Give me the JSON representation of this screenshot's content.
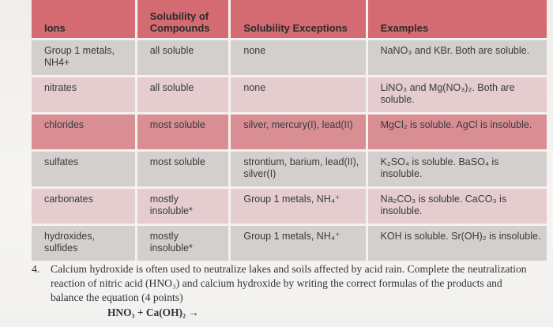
{
  "table": {
    "headers": [
      "Ions",
      "Solubility of Compounds",
      "Solubility Exceptions",
      "Examples"
    ],
    "rows": [
      {
        "ion": "Group 1 metals, NH4+",
        "solubility": "all soluble",
        "exceptions": "none",
        "examples": "NaNO₃ and KBr. Both are soluble."
      },
      {
        "ion": "nitrates",
        "solubility": "all soluble",
        "exceptions": "none",
        "examples": "LiNO₃ and Mg(NO₃)₂. Both are soluble."
      },
      {
        "ion": "chlorides",
        "solubility": "most soluble",
        "exceptions": "silver, mercury(I), lead(II)",
        "examples": "MgCl₂ is soluble. AgCl is insoluble."
      },
      {
        "ion": "sulfates",
        "solubility": "most soluble",
        "exceptions": "strontium, barium, lead(II), silver(I)",
        "examples": "K₂SO₄ is soluble. BaSO₄ is insoluble."
      },
      {
        "ion": "carbonates",
        "solubility": "mostly insoluble*",
        "exceptions": "Group 1 metals, NH₄⁺",
        "examples": "Na₂CO₃ is soluble. CaCO₃ is insoluble."
      },
      {
        "ion": "hydroxides, sulfides",
        "solubility": "mostly insoluble*",
        "exceptions": "Group 1 metals, NH₄⁺",
        "examples": "KOH is soluble. Sr(OH)₂ is insoluble."
      }
    ]
  },
  "question": {
    "number": "4.",
    "text": "Calcium hydroxide is often used to neutralize lakes and soils affected by acid rain. Complete the neutralization reaction of nitric acid (HNO₃) and calcium hydroxide by writing the correct formulas of the products and balance the equation (4 points)",
    "equation": "HNO₃ + Ca(OH)₂ →"
  }
}
